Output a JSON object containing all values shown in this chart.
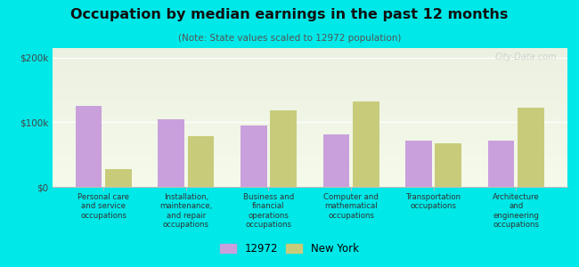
{
  "title": "Occupation by median earnings in the past 12 months",
  "subtitle": "(Note: State values scaled to 12972 population)",
  "background_color": "#00e8e8",
  "categories": [
    "Personal care\nand service\noccupations",
    "Installation,\nmaintenance,\nand repair\noccupations",
    "Business and\nfinancial\noperations\noccupations",
    "Computer and\nmathematical\noccupations",
    "Transportation\noccupations",
    "Architecture\nand\nengineering\noccupations"
  ],
  "values_12972": [
    125000,
    105000,
    95000,
    82000,
    72000,
    72000
  ],
  "values_ny": [
    28000,
    78000,
    118000,
    132000,
    68000,
    122000
  ],
  "color_12972": "#c9a0dc",
  "color_ny": "#c8cc7a",
  "legend_label_12972": "12972",
  "legend_label_ny": "New York",
  "yticks": [
    0,
    100000,
    200000
  ],
  "ytick_labels": [
    "$0",
    "$100k",
    "$200k"
  ],
  "ylim": [
    0,
    215000
  ],
  "watermark": "City-Data.com"
}
